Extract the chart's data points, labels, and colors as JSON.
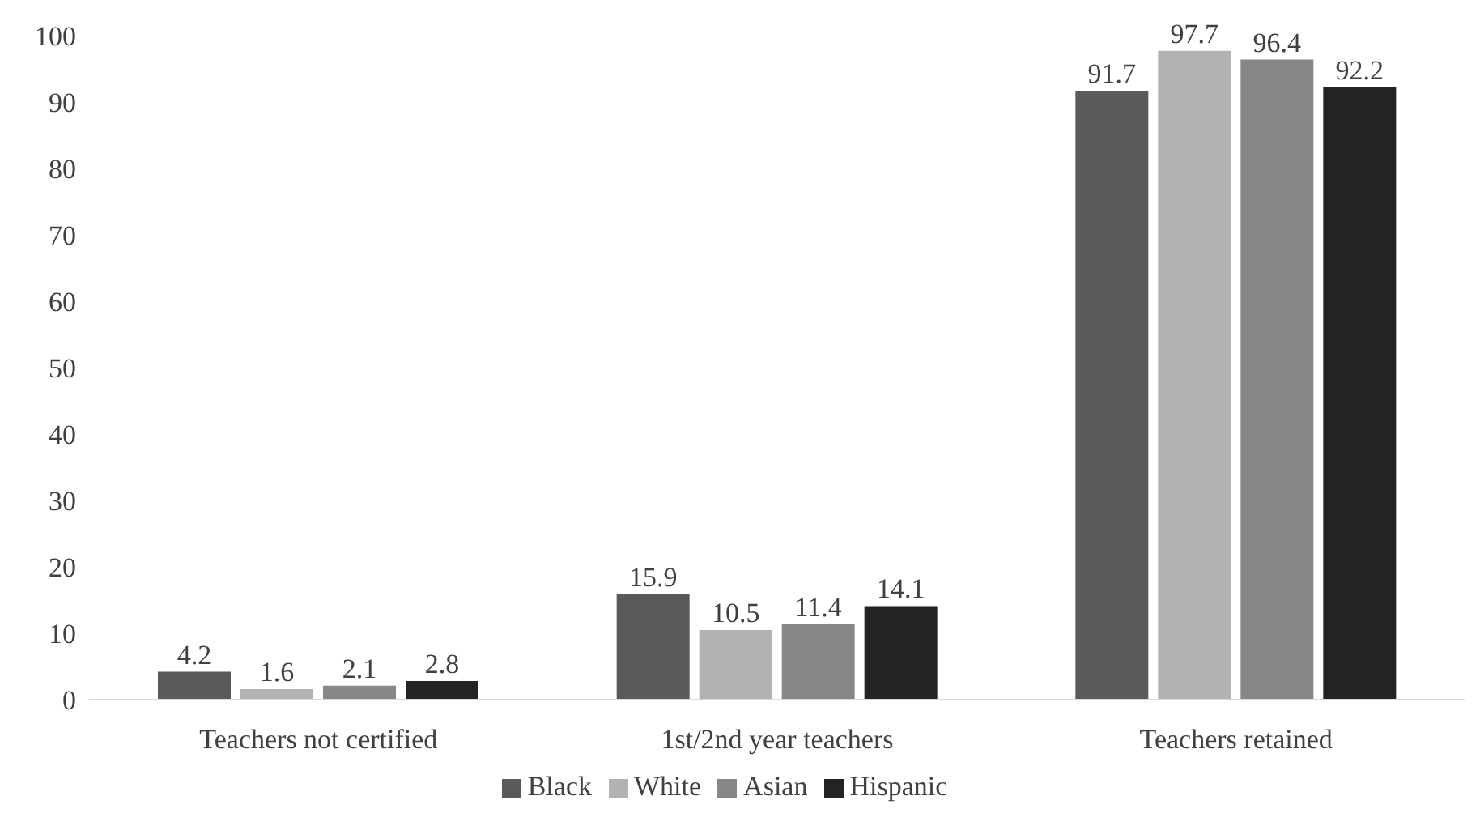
{
  "chart_data": {
    "type": "bar",
    "categories": [
      "Teachers not certified",
      "1st/2nd year teachers",
      "Teachers retained"
    ],
    "series": [
      {
        "name": "Black",
        "color": "#5a5a5a",
        "values": [
          4.2,
          15.9,
          91.7
        ]
      },
      {
        "name": "White",
        "color": "#b2b2b2",
        "values": [
          1.6,
          10.5,
          97.7
        ]
      },
      {
        "name": "Asian",
        "color": "#878787",
        "values": [
          2.1,
          11.4,
          96.4
        ]
      },
      {
        "name": "Hispanic",
        "color": "#232323",
        "values": [
          2.8,
          14.1,
          92.2
        ]
      }
    ],
    "ylim": [
      0,
      100
    ],
    "yticks": [
      0,
      10,
      20,
      30,
      40,
      50,
      60,
      70,
      80,
      90,
      100
    ],
    "grid": false,
    "legend": "bottom",
    "data_labels": true
  }
}
